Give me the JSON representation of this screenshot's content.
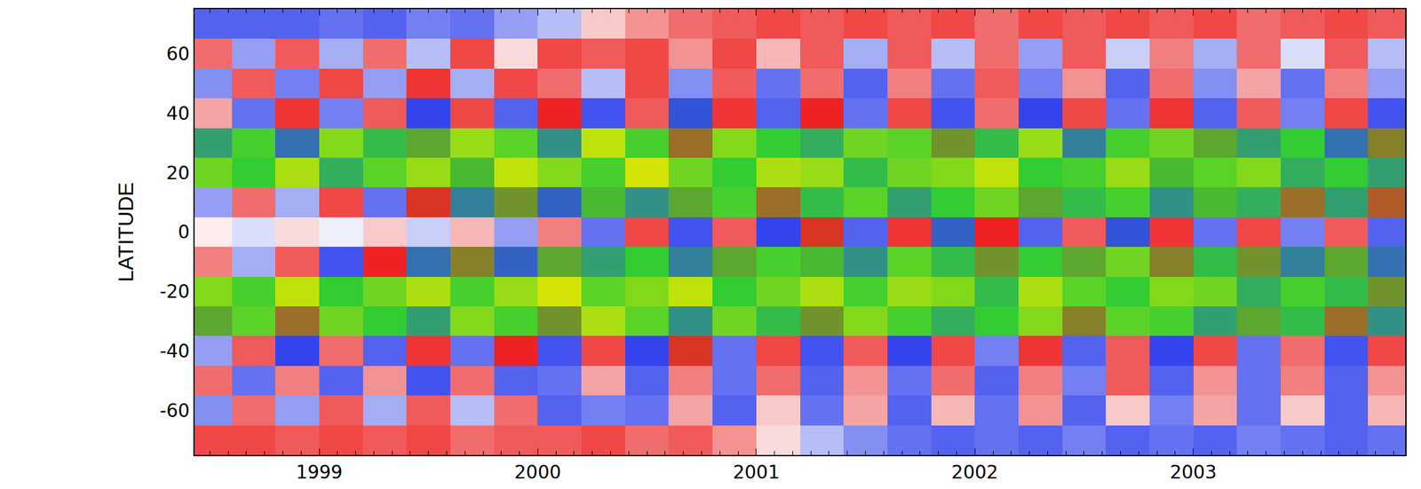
{
  "chart_data": {
    "type": "heatmap",
    "ylabel": "LATITUDE",
    "x": [
      1998.5,
      1998.7,
      1998.9,
      1999.1,
      1999.3,
      1999.5,
      1999.7,
      1999.9,
      2000.1,
      2000.3,
      2000.5,
      2000.7,
      2000.9,
      2001.1,
      2001.3,
      2001.5,
      2001.7,
      2001.9,
      2002.1,
      2002.3,
      2002.5,
      2002.7,
      2002.9,
      2003.1,
      2003.3,
      2003.5,
      2003.7,
      2003.9
    ],
    "y": [
      -70,
      -60,
      -50,
      -40,
      -30,
      -20,
      -10,
      0,
      10,
      20,
      30,
      40,
      50,
      60,
      70
    ],
    "z": [
      [
        1,
        1,
        0.9,
        1,
        0.9,
        1,
        0.8,
        0.9,
        0.9,
        1,
        0.8,
        0.9,
        0.6,
        0.2,
        -0.4,
        -0.7,
        -0.9,
        -1,
        -0.9,
        -1,
        -0.8,
        -1,
        -0.9,
        -1,
        -0.8,
        -0.9,
        -1,
        -0.9
      ],
      [
        -0.7,
        0.8,
        -0.6,
        0.9,
        -0.5,
        0.9,
        -0.4,
        0.8,
        -1,
        -0.8,
        -0.9,
        0.5,
        -1,
        0.3,
        -0.9,
        0.5,
        -1,
        0.4,
        -0.9,
        0.6,
        -1,
        0.3,
        -0.8,
        0.5,
        -0.9,
        0.3,
        -1,
        0.4
      ],
      [
        0.8,
        -0.9,
        0.7,
        -1,
        0.6,
        -1.1,
        0.8,
        -1,
        -0.9,
        0.5,
        -1,
        0.7,
        -0.9,
        0.8,
        -1,
        0.6,
        -0.9,
        0.8,
        -1,
        0.7,
        -0.8,
        0.9,
        -1,
        0.6,
        -0.9,
        0.7,
        -1,
        0.6
      ],
      [
        -0.6,
        0.9,
        -1.2,
        0.8,
        -1,
        1.1,
        -0.9,
        1.2,
        -1.1,
        1,
        -1.2,
        1.3,
        -0.9,
        1,
        -1.1,
        0.9,
        -1.2,
        1,
        -0.8,
        1.1,
        -1,
        0.9,
        -1.2,
        1,
        -0.9,
        0.8,
        -1.1,
        1
      ],
      [
        1.9,
        -2.3,
        1.6,
        -2.4,
        2.1,
        -1.8,
        2.5,
        -2.2,
        1.8,
        -2.7,
        2.3,
        -1.7,
        2.4,
        -2,
        1.8,
        -2.5,
        2.2,
        -1.9,
        2.1,
        -2.5,
        1.7,
        -2.3,
        2.2,
        -1.8,
        1.9,
        -2,
        1.6,
        -1.7
      ],
      [
        -2.5,
        2.2,
        -2.8,
        2.1,
        -2.4,
        2.7,
        -2.2,
        2.6,
        -2.9,
        2.3,
        -2.5,
        2.8,
        -2.1,
        2.4,
        -2.7,
        2.2,
        -2.6,
        2.5,
        -2,
        2.7,
        -2.3,
        2.1,
        -2.5,
        2.4,
        -1.9,
        2.2,
        -2,
        1.8
      ],
      [
        0.7,
        -0.5,
        0.9,
        -1.1,
        1.2,
        -1.5,
        1.7,
        -1.4,
        1.9,
        -1.8,
        2.1,
        -1.6,
        1.9,
        -2.2,
        2,
        -1.7,
        2.3,
        -2,
        1.8,
        -2.1,
        1.9,
        -2.4,
        1.7,
        -2,
        1.8,
        -1.6,
        1.9,
        -1.5
      ],
      [
        0.1,
        -0.2,
        0.2,
        -0.1,
        0.3,
        -0.3,
        0.4,
        -0.6,
        0.7,
        -0.9,
        1,
        -1.1,
        0.9,
        -1.2,
        1.3,
        -1,
        1.1,
        -1.4,
        1.2,
        -1,
        0.9,
        -1.3,
        1.1,
        -0.9,
        1,
        -0.8,
        0.9,
        -1
      ],
      [
        -0.6,
        0.8,
        -0.5,
        1,
        -0.9,
        1.3,
        -1.6,
        1.8,
        -1.4,
        2,
        -1.7,
        1.9,
        -2.2,
        1.6,
        -2,
        2.3,
        -1.8,
        2.1,
        -2.4,
        1.9,
        -2,
        2.2,
        -1.7,
        2,
        -1.9,
        1.6,
        -1.8,
        1.5
      ],
      [
        2.4,
        -2.1,
        2.7,
        -1.9,
        2.3,
        -2.6,
        2,
        -2.8,
        2.5,
        -2.2,
        2.9,
        -2.4,
        2.1,
        -2.7,
        2.6,
        -2,
        2.4,
        -2.5,
        2.8,
        -2.1,
        2.2,
        -2.6,
        2,
        -2.3,
        2.5,
        -1.9,
        2.1,
        -1.8
      ],
      [
        -1.8,
        2.2,
        -1.5,
        2.5,
        -2,
        1.9,
        -2.6,
        2.3,
        -1.7,
        2.8,
        -2.2,
        1.6,
        -2.5,
        2.1,
        -1.9,
        2.4,
        -2.3,
        1.8,
        -2,
        2.6,
        -1.6,
        2.2,
        -2.4,
        1.9,
        -1.8,
        2.1,
        -1.5,
        1.7
      ],
      [
        0.5,
        -0.9,
        1.1,
        -0.8,
        0.9,
        -1.2,
        1,
        -1,
        1.2,
        -1.1,
        0.9,
        -1.3,
        1.1,
        -1,
        1.2,
        -0.9,
        1,
        -1.1,
        0.8,
        -1.2,
        1,
        -0.9,
        1.1,
        -1,
        0.9,
        -0.8,
        1,
        -1.1
      ],
      [
        -0.7,
        0.9,
        -0.8,
        1,
        -0.6,
        1.1,
        -0.5,
        1,
        0.8,
        -0.4,
        1,
        -0.7,
        0.9,
        -0.9,
        0.8,
        -1,
        0.7,
        -0.9,
        0.9,
        -0.8,
        0.6,
        -1,
        0.8,
        -0.7,
        0.5,
        -0.9,
        0.7,
        -0.6
      ],
      [
        0.8,
        -0.6,
        0.9,
        -0.5,
        0.8,
        -0.4,
        1,
        0.2,
        1,
        0.9,
        1,
        0.6,
        1,
        0.4,
        0.9,
        -0.5,
        0.9,
        -0.4,
        0.8,
        -0.6,
        0.9,
        -0.3,
        0.7,
        -0.5,
        0.8,
        -0.2,
        0.9,
        -0.4
      ],
      [
        -1,
        -1,
        -1,
        -0.9,
        -1,
        -0.8,
        -0.9,
        -0.6,
        -0.4,
        0.3,
        0.6,
        0.8,
        0.9,
        1,
        0.9,
        1,
        0.9,
        1,
        0.8,
        1,
        0.9,
        1,
        0.9,
        1,
        0.8,
        0.9,
        1,
        0.9
      ]
    ],
    "zlim": [
      -3,
      3
    ],
    "xlim": [
      1998.43,
      2003.97
    ],
    "ylim": [
      -75,
      75
    ],
    "xticks": [
      1999,
      2000,
      2001,
      2002,
      2003
    ],
    "yticks": [
      -60,
      -40,
      -20,
      0,
      20,
      40,
      60
    ],
    "grid": false
  }
}
